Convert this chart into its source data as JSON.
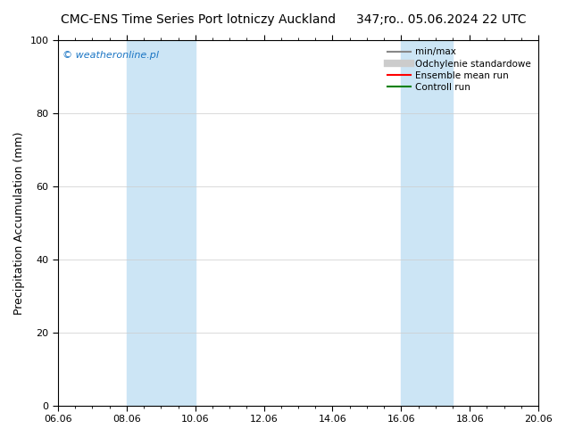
{
  "title_left": "CMC-ENS Time Series Port lotniczy Auckland",
  "title_right": "347;ro.. 05.06.2024 22 UTC",
  "ylabel": "Precipitation Accumulation (mm)",
  "watermark": "© weatheronline.pl",
  "ylim": [
    0,
    100
  ],
  "xlim_start": 0,
  "xlim_end": 14,
  "xtick_labels": [
    "06.06",
    "08.06",
    "10.06",
    "12.06",
    "14.06",
    "16.06",
    "18.06",
    "20.06"
  ],
  "xtick_positions": [
    0,
    2,
    4,
    6,
    8,
    10,
    12,
    14
  ],
  "ytick_positions": [
    0,
    20,
    40,
    60,
    80,
    100
  ],
  "shaded_bands": [
    {
      "xmin": 2.0,
      "xmax": 4.0
    },
    {
      "xmin": 10.0,
      "xmax": 11.5
    }
  ],
  "band_color": "#cce5f5",
  "legend_entries": [
    {
      "label": "min/max",
      "color": "#888888",
      "lw": 1.5
    },
    {
      "label": "Odchylenie standardowe",
      "color": "#cccccc",
      "lw": 6
    },
    {
      "label": "Ensemble mean run",
      "color": "red",
      "lw": 1.5
    },
    {
      "label": "Controll run",
      "color": "green",
      "lw": 1.5
    }
  ],
  "background_color": "#ffffff",
  "plot_bg_color": "#ffffff",
  "title_fontsize": 10,
  "watermark_color": "#1a75c4",
  "grid_color": "#cccccc",
  "tick_label_fontsize": 8,
  "ylabel_fontsize": 9
}
